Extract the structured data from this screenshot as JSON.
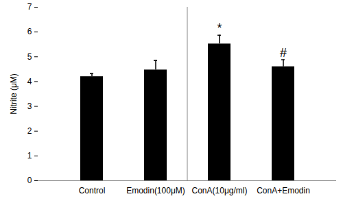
{
  "chart_data": {
    "type": "bar",
    "categories": [
      "Control",
      "Emodin(100μM)",
      "ConA(10μg/ml)",
      "ConA+Emodin"
    ],
    "values": [
      4.2,
      4.47,
      5.52,
      4.6
    ],
    "errors": [
      0.12,
      0.38,
      0.35,
      0.28
    ],
    "color": "#000000",
    "y_label": "Nitrite (μM)",
    "ylim": [
      0,
      7
    ],
    "yticks": [
      0,
      1,
      2,
      3,
      4,
      5,
      6,
      7
    ],
    "grid": false,
    "annotations": [
      {
        "category": "ConA(10μg/ml)",
        "text": "*"
      },
      {
        "category": "ConA+Emodin",
        "text": "#"
      }
    ]
  }
}
